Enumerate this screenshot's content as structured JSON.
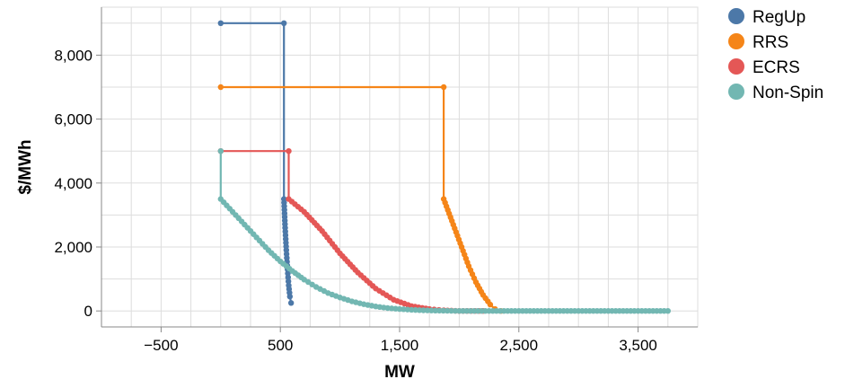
{
  "chart_data": {
    "type": "line",
    "title": "",
    "xlabel": "MW",
    "ylabel": "$/MWh",
    "xlim": [
      -1000,
      4000
    ],
    "ylim": [
      -500,
      9500
    ],
    "x_ticks": [
      "−500",
      "500",
      "1,500",
      "2,500",
      "3,500"
    ],
    "x_tick_values": [
      -500,
      500,
      1500,
      2500,
      3500
    ],
    "y_ticks": [
      "0",
      "2,000",
      "4,000",
      "6,000",
      "8,000"
    ],
    "y_tick_values": [
      0,
      2000,
      4000,
      6000,
      8000
    ],
    "grid": true,
    "legend_position": "top-right",
    "series": [
      {
        "name": "RegUp",
        "color": "#4c78a8",
        "points": [
          [
            0,
            9000
          ],
          [
            530,
            9000
          ],
          [
            530,
            3500
          ],
          [
            540,
            2600
          ],
          [
            550,
            1900
          ],
          [
            560,
            1300
          ],
          [
            570,
            800
          ],
          [
            580,
            450
          ],
          [
            590,
            250
          ]
        ]
      },
      {
        "name": "RRS",
        "color": "#f58518",
        "points": [
          [
            0,
            7000
          ],
          [
            1870,
            7000
          ],
          [
            1870,
            3500
          ],
          [
            1950,
            2700
          ],
          [
            2020,
            2000
          ],
          [
            2080,
            1400
          ],
          [
            2140,
            900
          ],
          [
            2200,
            500
          ],
          [
            2260,
            200
          ],
          [
            2300,
            60
          ],
          [
            2350,
            0
          ]
        ]
      },
      {
        "name": "ECRS",
        "color": "#e45756",
        "points": [
          [
            0,
            5000
          ],
          [
            570,
            5000
          ],
          [
            570,
            3500
          ],
          [
            700,
            3100
          ],
          [
            850,
            2500
          ],
          [
            1000,
            1800
          ],
          [
            1150,
            1200
          ],
          [
            1300,
            700
          ],
          [
            1450,
            350
          ],
          [
            1600,
            150
          ],
          [
            1750,
            60
          ],
          [
            1870,
            20
          ],
          [
            2000,
            0
          ],
          [
            2200,
            0
          ]
        ]
      },
      {
        "name": "Non-Spin",
        "color": "#72b7b2",
        "points": [
          [
            0,
            5000
          ],
          [
            0,
            3500
          ],
          [
            100,
            3100
          ],
          [
            200,
            2700
          ],
          [
            300,
            2300
          ],
          [
            400,
            1900
          ],
          [
            500,
            1550
          ],
          [
            600,
            1250
          ],
          [
            700,
            980
          ],
          [
            800,
            750
          ],
          [
            900,
            560
          ],
          [
            1000,
            420
          ],
          [
            1100,
            300
          ],
          [
            1200,
            210
          ],
          [
            1300,
            140
          ],
          [
            1400,
            90
          ],
          [
            1500,
            60
          ],
          [
            1600,
            35
          ],
          [
            1700,
            20
          ],
          [
            1800,
            10
          ],
          [
            1900,
            5
          ],
          [
            2000,
            0
          ],
          [
            2500,
            0
          ],
          [
            3000,
            0
          ],
          [
            3500,
            0
          ],
          [
            3750,
            0
          ]
        ]
      }
    ]
  }
}
